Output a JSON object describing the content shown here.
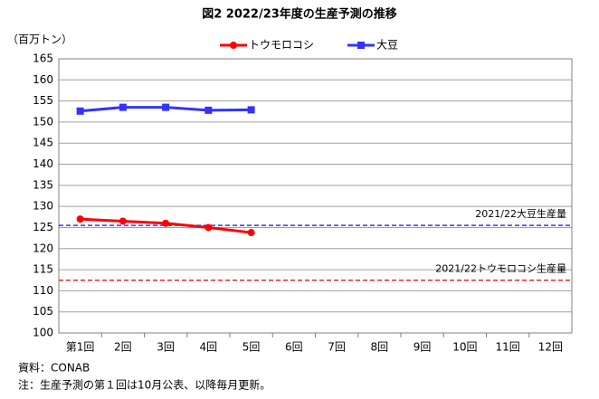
{
  "chart_data": {
    "type": "line",
    "title": "図2 2022/23年度の生産予測の推移",
    "y_label": "（百万トン）",
    "categories": [
      "第1回",
      "2回",
      "3回",
      "4回",
      "5回",
      "6回",
      "7回",
      "8回",
      "9回",
      "10回",
      "11回",
      "12回"
    ],
    "series": [
      {
        "name": "トウモロコシ",
        "color": "#ff0000",
        "marker": "circle",
        "values": [
          127.0,
          126.5,
          126.0,
          125.0,
          123.8,
          null,
          null,
          null,
          null,
          null,
          null,
          null
        ]
      },
      {
        "name": "大豆",
        "color": "#3333ff",
        "marker": "square",
        "values": [
          152.6,
          153.5,
          153.5,
          152.8,
          152.9,
          null,
          null,
          null,
          null,
          null,
          null,
          null
        ]
      }
    ],
    "reference_lines": [
      {
        "label": "2021/22大豆生産量",
        "value": 125.5,
        "color": "#3333ff"
      },
      {
        "label": "2021/22トウモロコシ生産量",
        "value": 112.5,
        "color": "#e03020"
      }
    ],
    "ylim": [
      100,
      165
    ],
    "yticks": [
      100,
      105,
      110,
      115,
      120,
      125,
      130,
      135,
      140,
      145,
      150,
      155,
      160,
      165
    ],
    "grid": true,
    "legend": "top",
    "notes": [
      "資料：CONAB",
      "注：生産予測の第１回は10月公表、以降毎月更新。"
    ]
  }
}
